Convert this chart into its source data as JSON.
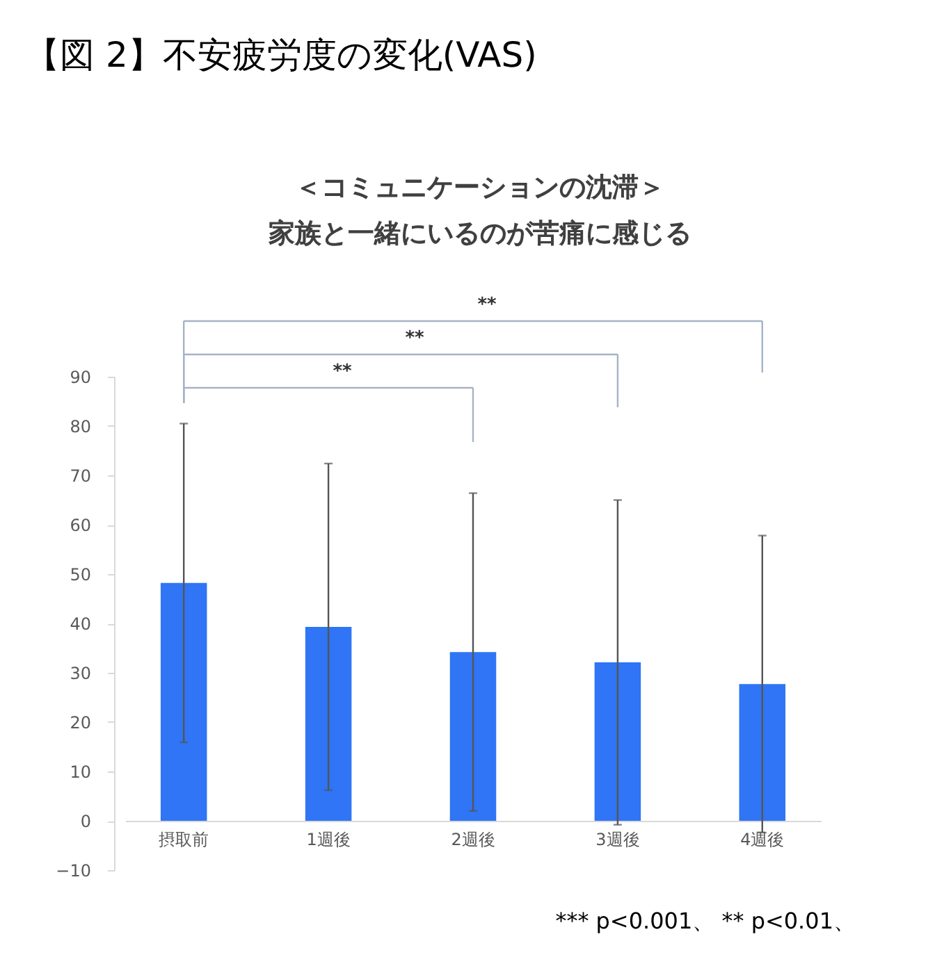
{
  "chart_data": {
    "type": "bar",
    "title": "【図 2】不安疲労度の変化(VAS)",
    "subtitle": [
      "＜コミュニケーションの沈滞＞",
      "家族と一緒にいるのが苦痛に感じる"
    ],
    "categories": [
      "摂取前",
      "1週後",
      "2週後",
      "3週後",
      "4週後"
    ],
    "values": [
      48.2,
      39.3,
      34.2,
      32.1,
      27.7
    ],
    "errors": [
      32.3,
      33.1,
      32.2,
      32.9,
      30.1
    ],
    "color": "#2f75f5",
    "ylim": [
      -10,
      90
    ],
    "yticks": [
      -10,
      0,
      10,
      20,
      30,
      40,
      50,
      60,
      70,
      80,
      90
    ],
    "annotations": [
      "**",
      "**",
      "**",
      "*** p<0.001、 ** p<0.01、"
    ]
  }
}
